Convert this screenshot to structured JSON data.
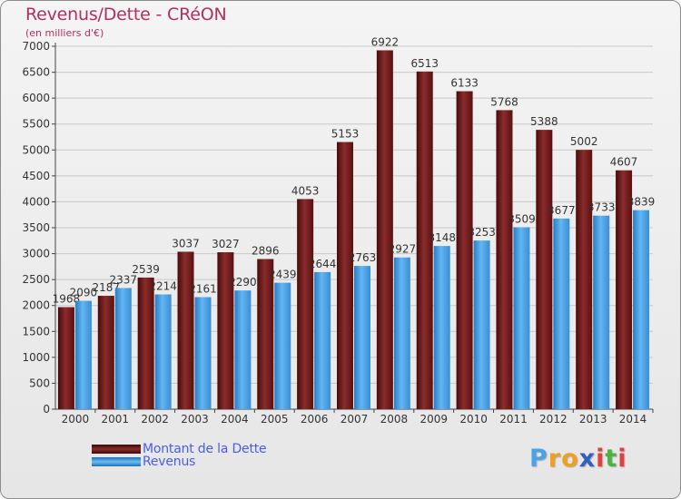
{
  "title": "Revenus/Dette - CRéON",
  "subtitle": "(en milliers d'€)",
  "chart_data": {
    "type": "bar",
    "categories": [
      "2000",
      "2001",
      "2002",
      "2003",
      "2004",
      "2005",
      "2006",
      "2007",
      "2008",
      "2009",
      "2010",
      "2011",
      "2012",
      "2013",
      "2014"
    ],
    "series": [
      {
        "name": "Montant de la Dette",
        "color": "#7a1a1a",
        "values": [
          1968,
          2187,
          2539,
          3037,
          3027,
          2896,
          4053,
          5153,
          6922,
          6513,
          6133,
          5768,
          5388,
          5002,
          4607
        ],
        "labels": [
          "1968",
          "2187",
          "2539",
          "3037",
          "3027",
          "2896",
          "4053",
          "5153",
          "6922",
          "6513",
          "6133",
          "5768",
          "5388",
          "5002",
          "4607"
        ]
      },
      {
        "name": "Revenus",
        "color": "#4aa3e6",
        "values": [
          2090,
          2337,
          2214,
          2161,
          2290,
          2439,
          2644,
          2763,
          2927,
          3148,
          3253,
          3509,
          3677,
          3733,
          3839
        ],
        "labels": [
          "2090",
          "2337",
          "2214",
          "2161",
          "2290",
          "2439",
          "2644",
          "2763",
          "2927",
          "3148",
          "3253",
          "3509",
          "3677",
          "3733",
          "3839"
        ]
      }
    ],
    "y_ticks": [
      "0",
      "500",
      "1000",
      "1500",
      "2000",
      "2500",
      "3000",
      "3500",
      "4000",
      "4500",
      "5000",
      "5500",
      "6000",
      "6500",
      "7000"
    ],
    "ylim": [
      0,
      7000
    ],
    "grid": true,
    "legend": "bottom-left"
  },
  "legend": {
    "debt_label": "Montant de la Dette",
    "revenue_label": "Revenus"
  },
  "logo": {
    "letters": [
      "P",
      "r",
      "o",
      "x",
      "i",
      "t",
      "i"
    ],
    "colors": [
      "#4aa3e6",
      "#f0a020",
      "#f0a020",
      "#3060c0",
      "#e04040",
      "#50b040",
      "#e04040"
    ]
  }
}
